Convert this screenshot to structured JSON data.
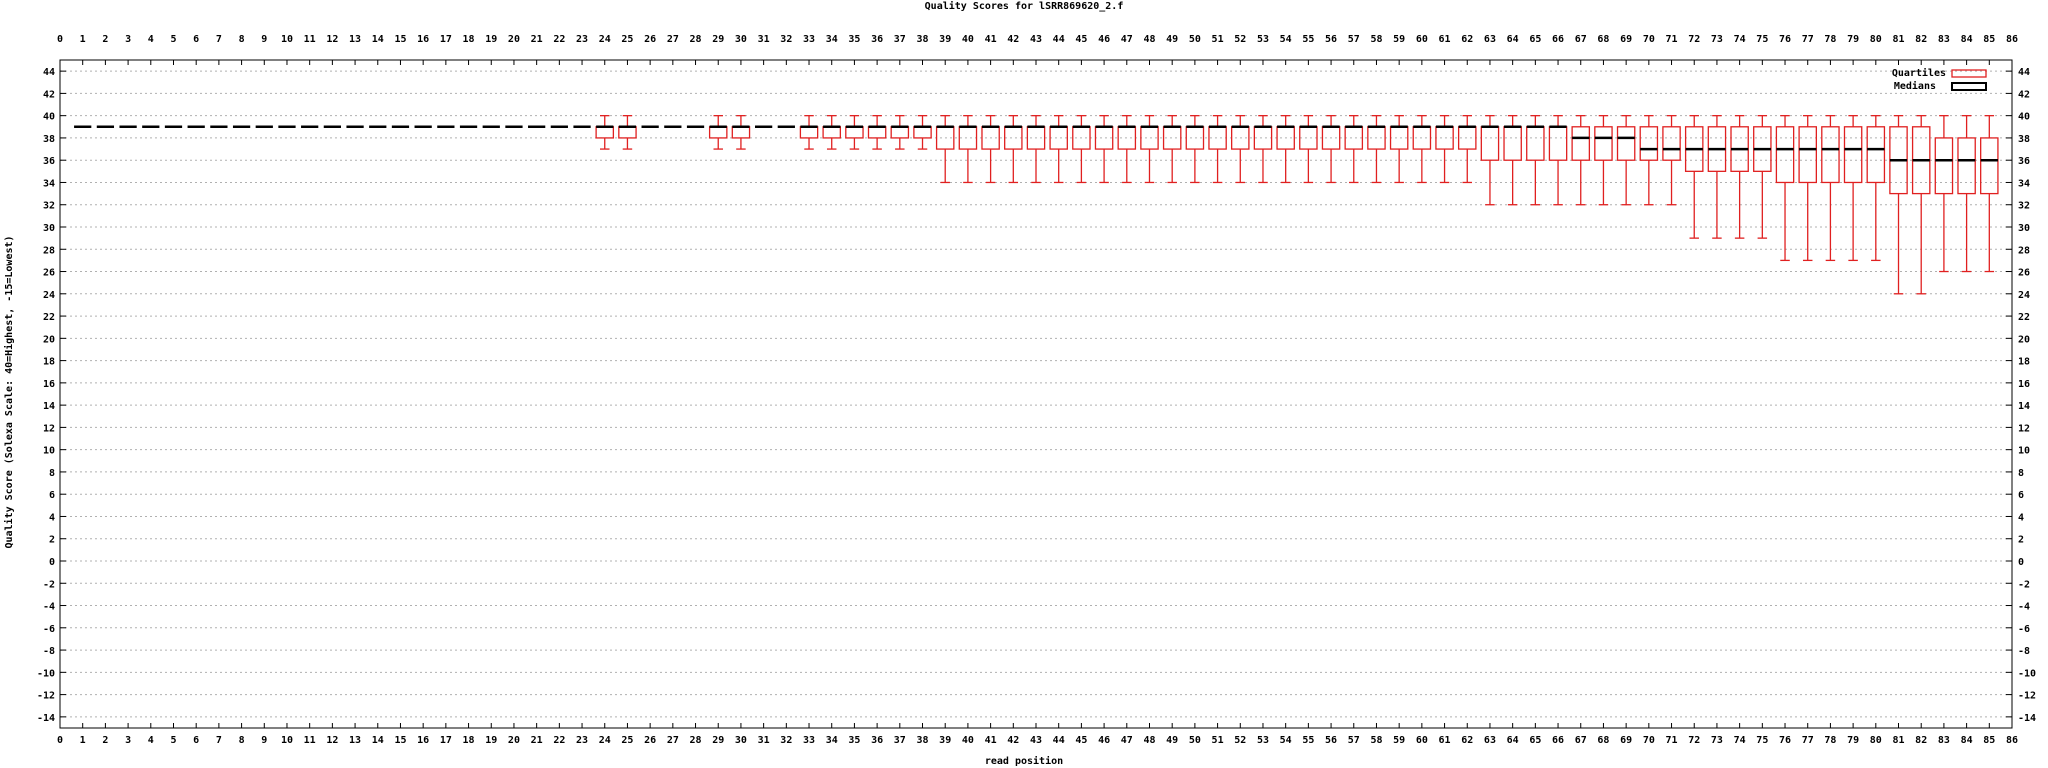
{
  "chart_data": {
    "type": "boxplot",
    "title": "Quality Scores for lSRR869620_2.f",
    "xlabel": "read position",
    "ylabel": "Quality Score (Solexa Scale: 40=Highest, -15=Lowest)",
    "xlim": [
      0,
      86
    ],
    "ylim": [
      -15,
      45
    ],
    "ytick_step": 2,
    "grid": true,
    "legend_position": "top-right",
    "legend": [
      {
        "label": "Quartiles",
        "color": "#e02020"
      },
      {
        "label": "Medians",
        "color": "#000000"
      }
    ],
    "colors": {
      "box": "#e02020",
      "median": "#000000",
      "grid": "#b0b0b0"
    },
    "boxes": [
      {
        "pos": 1,
        "min": 39,
        "q1": 39,
        "median": 39,
        "q3": 39,
        "max": 39
      },
      {
        "pos": 2,
        "min": 39,
        "q1": 39,
        "median": 39,
        "q3": 39,
        "max": 39
      },
      {
        "pos": 3,
        "min": 39,
        "q1": 39,
        "median": 39,
        "q3": 39,
        "max": 39
      },
      {
        "pos": 4,
        "min": 39,
        "q1": 39,
        "median": 39,
        "q3": 39,
        "max": 39
      },
      {
        "pos": 5,
        "min": 39,
        "q1": 39,
        "median": 39,
        "q3": 39,
        "max": 39
      },
      {
        "pos": 6,
        "min": 39,
        "q1": 39,
        "median": 39,
        "q3": 39,
        "max": 39
      },
      {
        "pos": 7,
        "min": 39,
        "q1": 39,
        "median": 39,
        "q3": 39,
        "max": 39
      },
      {
        "pos": 8,
        "min": 39,
        "q1": 39,
        "median": 39,
        "q3": 39,
        "max": 39
      },
      {
        "pos": 9,
        "min": 39,
        "q1": 39,
        "median": 39,
        "q3": 39,
        "max": 39
      },
      {
        "pos": 10,
        "min": 39,
        "q1": 39,
        "median": 39,
        "q3": 39,
        "max": 39
      },
      {
        "pos": 11,
        "min": 39,
        "q1": 39,
        "median": 39,
        "q3": 39,
        "max": 39
      },
      {
        "pos": 12,
        "min": 39,
        "q1": 39,
        "median": 39,
        "q3": 39,
        "max": 39
      },
      {
        "pos": 13,
        "min": 39,
        "q1": 39,
        "median": 39,
        "q3": 39,
        "max": 39
      },
      {
        "pos": 14,
        "min": 39,
        "q1": 39,
        "median": 39,
        "q3": 39,
        "max": 39
      },
      {
        "pos": 15,
        "min": 39,
        "q1": 39,
        "median": 39,
        "q3": 39,
        "max": 39
      },
      {
        "pos": 16,
        "min": 39,
        "q1": 39,
        "median": 39,
        "q3": 39,
        "max": 39
      },
      {
        "pos": 17,
        "min": 39,
        "q1": 39,
        "median": 39,
        "q3": 39,
        "max": 39
      },
      {
        "pos": 18,
        "min": 39,
        "q1": 39,
        "median": 39,
        "q3": 39,
        "max": 39
      },
      {
        "pos": 19,
        "min": 39,
        "q1": 39,
        "median": 39,
        "q3": 39,
        "max": 39
      },
      {
        "pos": 20,
        "min": 39,
        "q1": 39,
        "median": 39,
        "q3": 39,
        "max": 39
      },
      {
        "pos": 21,
        "min": 39,
        "q1": 39,
        "median": 39,
        "q3": 39,
        "max": 39
      },
      {
        "pos": 22,
        "min": 39,
        "q1": 39,
        "median": 39,
        "q3": 39,
        "max": 39
      },
      {
        "pos": 23,
        "min": 39,
        "q1": 39,
        "median": 39,
        "q3": 39,
        "max": 39
      },
      {
        "pos": 24,
        "min": 37,
        "q1": 38,
        "median": 39,
        "q3": 39,
        "max": 40
      },
      {
        "pos": 25,
        "min": 37,
        "q1": 38,
        "median": 39,
        "q3": 39,
        "max": 40
      },
      {
        "pos": 26,
        "min": 39,
        "q1": 39,
        "median": 39,
        "q3": 39,
        "max": 39
      },
      {
        "pos": 27,
        "min": 39,
        "q1": 39,
        "median": 39,
        "q3": 39,
        "max": 39
      },
      {
        "pos": 28,
        "min": 39,
        "q1": 39,
        "median": 39,
        "q3": 39,
        "max": 39
      },
      {
        "pos": 29,
        "min": 37,
        "q1": 38,
        "median": 39,
        "q3": 39,
        "max": 40
      },
      {
        "pos": 30,
        "min": 37,
        "q1": 38,
        "median": 39,
        "q3": 39,
        "max": 40
      },
      {
        "pos": 31,
        "min": 39,
        "q1": 39,
        "median": 39,
        "q3": 39,
        "max": 39
      },
      {
        "pos": 32,
        "min": 39,
        "q1": 39,
        "median": 39,
        "q3": 39,
        "max": 39
      },
      {
        "pos": 33,
        "min": 37,
        "q1": 38,
        "median": 39,
        "q3": 39,
        "max": 40
      },
      {
        "pos": 34,
        "min": 37,
        "q1": 38,
        "median": 39,
        "q3": 39,
        "max": 40
      },
      {
        "pos": 35,
        "min": 37,
        "q1": 38,
        "median": 39,
        "q3": 39,
        "max": 40
      },
      {
        "pos": 36,
        "min": 37,
        "q1": 38,
        "median": 39,
        "q3": 39,
        "max": 40
      },
      {
        "pos": 37,
        "min": 37,
        "q1": 38,
        "median": 39,
        "q3": 39,
        "max": 40
      },
      {
        "pos": 38,
        "min": 37,
        "q1": 38,
        "median": 39,
        "q3": 39,
        "max": 40
      },
      {
        "pos": 39,
        "min": 34,
        "q1": 37,
        "median": 39,
        "q3": 39,
        "max": 40
      },
      {
        "pos": 40,
        "min": 34,
        "q1": 37,
        "median": 39,
        "q3": 39,
        "max": 40
      },
      {
        "pos": 41,
        "min": 34,
        "q1": 37,
        "median": 39,
        "q3": 39,
        "max": 40
      },
      {
        "pos": 42,
        "min": 34,
        "q1": 37,
        "median": 39,
        "q3": 39,
        "max": 40
      },
      {
        "pos": 43,
        "min": 34,
        "q1": 37,
        "median": 39,
        "q3": 39,
        "max": 40
      },
      {
        "pos": 44,
        "min": 34,
        "q1": 37,
        "median": 39,
        "q3": 39,
        "max": 40
      },
      {
        "pos": 45,
        "min": 34,
        "q1": 37,
        "median": 39,
        "q3": 39,
        "max": 40
      },
      {
        "pos": 46,
        "min": 34,
        "q1": 37,
        "median": 39,
        "q3": 39,
        "max": 40
      },
      {
        "pos": 47,
        "min": 34,
        "q1": 37,
        "median": 39,
        "q3": 39,
        "max": 40
      },
      {
        "pos": 48,
        "min": 34,
        "q1": 37,
        "median": 39,
        "q3": 39,
        "max": 40
      },
      {
        "pos": 49,
        "min": 34,
        "q1": 37,
        "median": 39,
        "q3": 39,
        "max": 40
      },
      {
        "pos": 50,
        "min": 34,
        "q1": 37,
        "median": 39,
        "q3": 39,
        "max": 40
      },
      {
        "pos": 51,
        "min": 34,
        "q1": 37,
        "median": 39,
        "q3": 39,
        "max": 40
      },
      {
        "pos": 52,
        "min": 34,
        "q1": 37,
        "median": 39,
        "q3": 39,
        "max": 40
      },
      {
        "pos": 53,
        "min": 34,
        "q1": 37,
        "median": 39,
        "q3": 39,
        "max": 40
      },
      {
        "pos": 54,
        "min": 34,
        "q1": 37,
        "median": 39,
        "q3": 39,
        "max": 40
      },
      {
        "pos": 55,
        "min": 34,
        "q1": 37,
        "median": 39,
        "q3": 39,
        "max": 40
      },
      {
        "pos": 56,
        "min": 34,
        "q1": 37,
        "median": 39,
        "q3": 39,
        "max": 40
      },
      {
        "pos": 57,
        "min": 34,
        "q1": 37,
        "median": 39,
        "q3": 39,
        "max": 40
      },
      {
        "pos": 58,
        "min": 34,
        "q1": 37,
        "median": 39,
        "q3": 39,
        "max": 40
      },
      {
        "pos": 59,
        "min": 34,
        "q1": 37,
        "median": 39,
        "q3": 39,
        "max": 40
      },
      {
        "pos": 60,
        "min": 34,
        "q1": 37,
        "median": 39,
        "q3": 39,
        "max": 40
      },
      {
        "pos": 61,
        "min": 34,
        "q1": 37,
        "median": 39,
        "q3": 39,
        "max": 40
      },
      {
        "pos": 62,
        "min": 34,
        "q1": 37,
        "median": 39,
        "q3": 39,
        "max": 40
      },
      {
        "pos": 63,
        "min": 32,
        "q1": 36,
        "median": 39,
        "q3": 39,
        "max": 40
      },
      {
        "pos": 64,
        "min": 32,
        "q1": 36,
        "median": 39,
        "q3": 39,
        "max": 40
      },
      {
        "pos": 65,
        "min": 32,
        "q1": 36,
        "median": 39,
        "q3": 39,
        "max": 40
      },
      {
        "pos": 66,
        "min": 32,
        "q1": 36,
        "median": 39,
        "q3": 39,
        "max": 40
      },
      {
        "pos": 67,
        "min": 32,
        "q1": 36,
        "median": 38,
        "q3": 39,
        "max": 40
      },
      {
        "pos": 68,
        "min": 32,
        "q1": 36,
        "median": 38,
        "q3": 39,
        "max": 40
      },
      {
        "pos": 69,
        "min": 32,
        "q1": 36,
        "median": 38,
        "q3": 39,
        "max": 40
      },
      {
        "pos": 70,
        "min": 32,
        "q1": 36,
        "median": 37,
        "q3": 39,
        "max": 40
      },
      {
        "pos": 71,
        "min": 32,
        "q1": 36,
        "median": 37,
        "q3": 39,
        "max": 40
      },
      {
        "pos": 72,
        "min": 29,
        "q1": 35,
        "median": 37,
        "q3": 39,
        "max": 40
      },
      {
        "pos": 73,
        "min": 29,
        "q1": 35,
        "median": 37,
        "q3": 39,
        "max": 40
      },
      {
        "pos": 74,
        "min": 29,
        "q1": 35,
        "median": 37,
        "q3": 39,
        "max": 40
      },
      {
        "pos": 75,
        "min": 29,
        "q1": 35,
        "median": 37,
        "q3": 39,
        "max": 40
      },
      {
        "pos": 76,
        "min": 27,
        "q1": 34,
        "median": 37,
        "q3": 39,
        "max": 40
      },
      {
        "pos": 77,
        "min": 27,
        "q1": 34,
        "median": 37,
        "q3": 39,
        "max": 40
      },
      {
        "pos": 78,
        "min": 27,
        "q1": 34,
        "median": 37,
        "q3": 39,
        "max": 40
      },
      {
        "pos": 79,
        "min": 27,
        "q1": 34,
        "median": 37,
        "q3": 39,
        "max": 40
      },
      {
        "pos": 80,
        "min": 27,
        "q1": 34,
        "median": 37,
        "q3": 39,
        "max": 40
      },
      {
        "pos": 81,
        "min": 24,
        "q1": 33,
        "median": 36,
        "q3": 39,
        "max": 40
      },
      {
        "pos": 82,
        "min": 24,
        "q1": 33,
        "median": 36,
        "q3": 39,
        "max": 40
      },
      {
        "pos": 83,
        "min": 26,
        "q1": 33,
        "median": 36,
        "q3": 38,
        "max": 40
      },
      {
        "pos": 84,
        "min": 26,
        "q1": 33,
        "median": 36,
        "q3": 38,
        "max": 40
      },
      {
        "pos": 85,
        "min": 26,
        "q1": 33,
        "median": 36,
        "q3": 38,
        "max": 40
      }
    ]
  }
}
